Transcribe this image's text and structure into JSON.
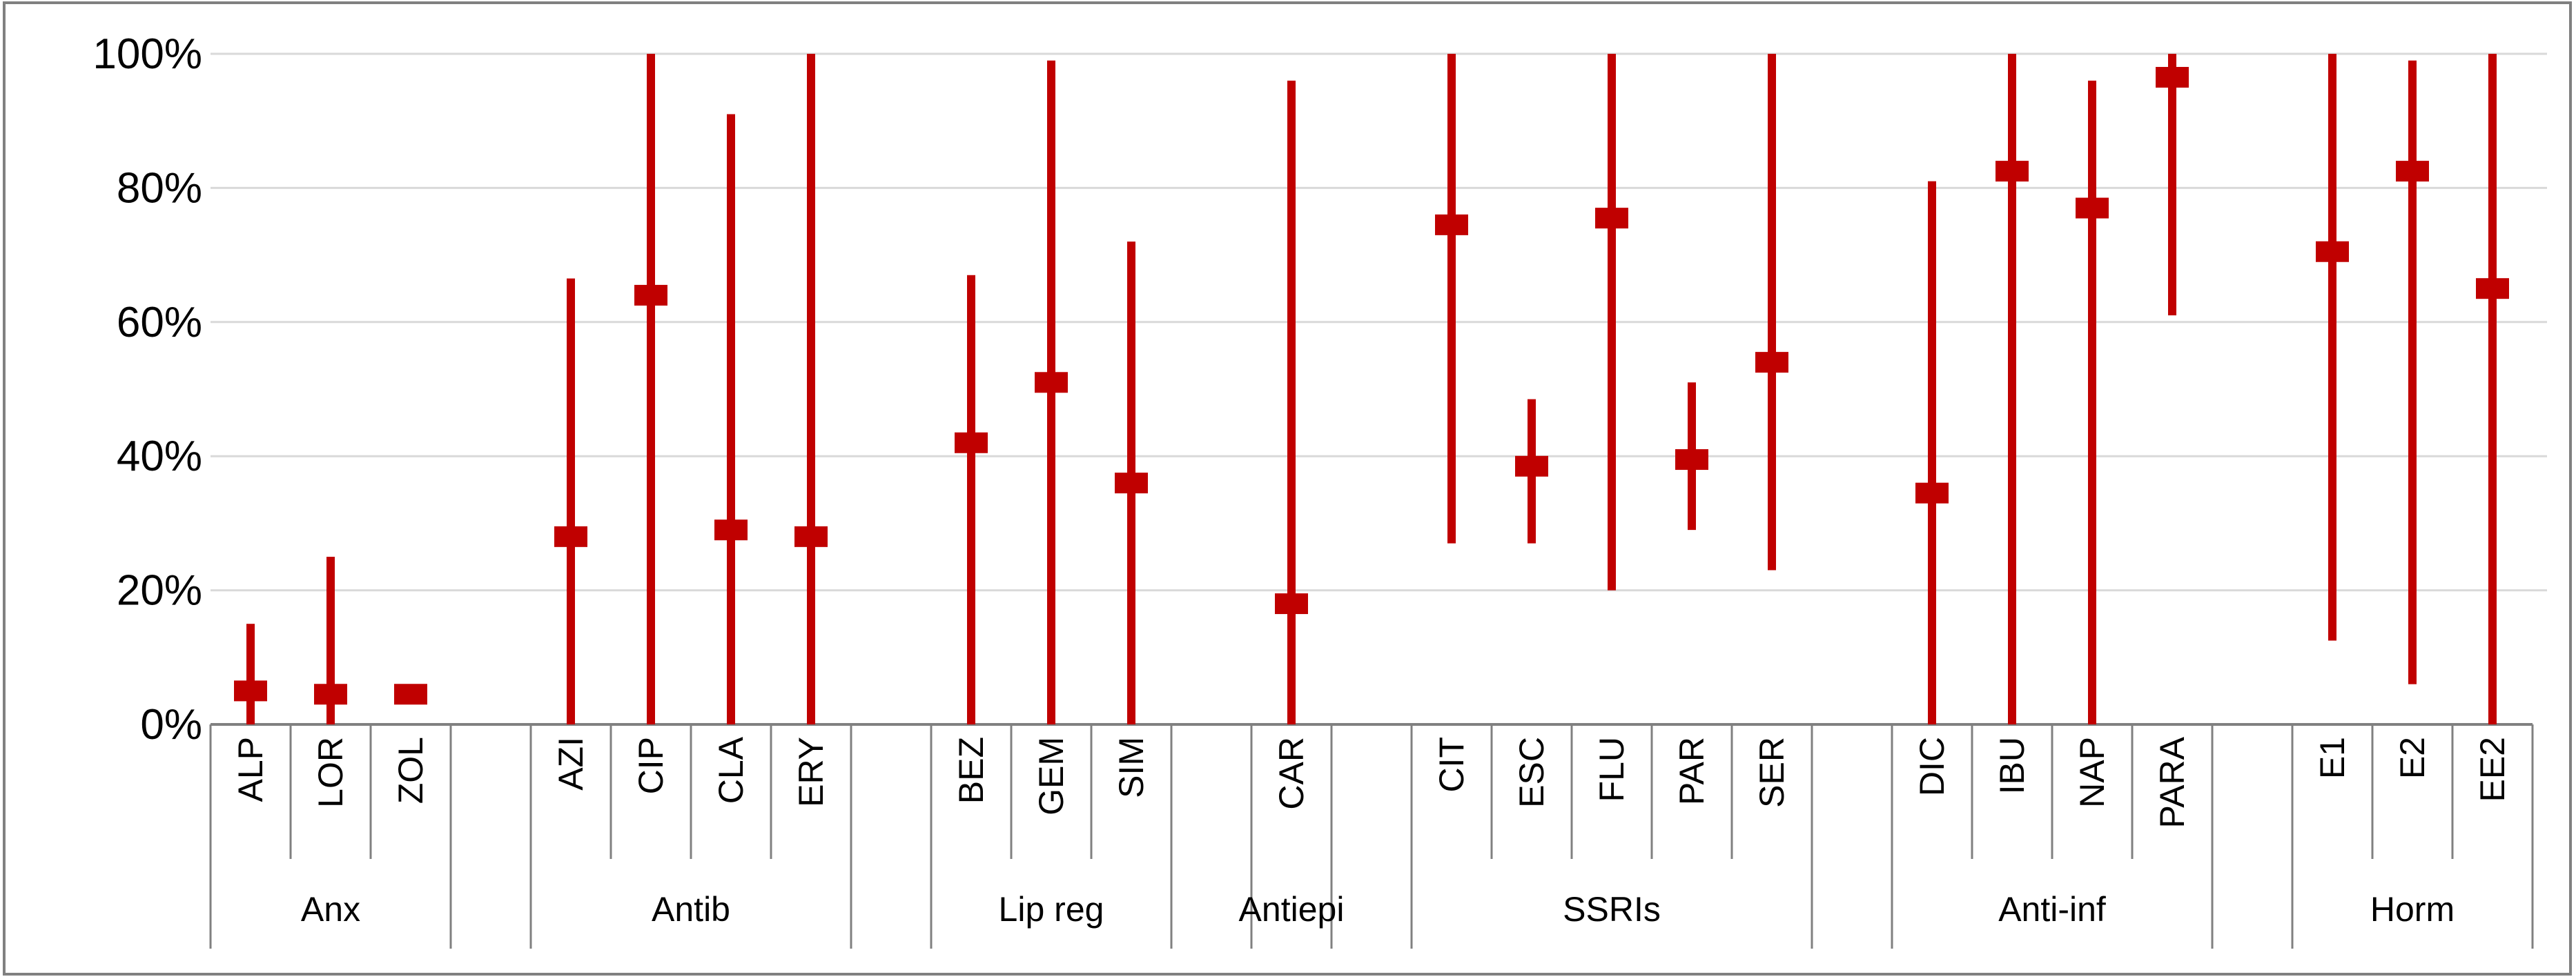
{
  "chart_data": {
    "type": "errorbar",
    "y_axis": {
      "min": 0,
      "max": 100,
      "ticks": [
        0,
        20,
        40,
        60,
        80,
        100
      ],
      "tick_labels": [
        "0%",
        "20%",
        "40%",
        "60%",
        "80%",
        "100%"
      ],
      "gridlines": true
    },
    "legend": "none",
    "colors": {
      "series": "#C00000",
      "grid": "#D9D9D9",
      "axis": "#808080",
      "frame": "#808080"
    },
    "slots": [
      "ALP",
      "LOR",
      "ZOL",
      "",
      "AZI",
      "CIP",
      "CLA",
      "ERY",
      "",
      "BEZ",
      "GEM",
      "SIM",
      "",
      "CAR",
      "",
      "CIT",
      "ESC",
      "FLU",
      "PAR",
      "SER",
      "",
      "DIC",
      "IBU",
      "NAP",
      "PARA",
      "",
      "E1",
      "E2",
      "EE2"
    ],
    "groups": [
      {
        "name": "Anx",
        "start": 0,
        "end": 2
      },
      {
        "name": "Antib",
        "start": 4,
        "end": 7
      },
      {
        "name": "Lip reg",
        "start": 9,
        "end": 11
      },
      {
        "name": "Antiepi",
        "start": 13,
        "end": 13
      },
      {
        "name": "SSRIs",
        "start": 15,
        "end": 19
      },
      {
        "name": "Anti-inf",
        "start": 21,
        "end": 24
      },
      {
        "name": "Horm",
        "start": 26,
        "end": 28
      }
    ],
    "points": [
      {
        "label": "ALP",
        "value": 5,
        "low": 0,
        "high": 15
      },
      {
        "label": "LOR",
        "value": 4.5,
        "low": 0,
        "high": 25
      },
      {
        "label": "ZOL",
        "value": 4.5,
        "low": 4.5,
        "high": 4.5
      },
      {
        "label": "AZI",
        "value": 28,
        "low": 0,
        "high": 66.5
      },
      {
        "label": "CIP",
        "value": 64,
        "low": 0,
        "high": 100
      },
      {
        "label": "CLA",
        "value": 29,
        "low": 0,
        "high": 91
      },
      {
        "label": "ERY",
        "value": 28,
        "low": 0,
        "high": 100
      },
      {
        "label": "BEZ",
        "value": 42,
        "low": 0,
        "high": 67
      },
      {
        "label": "GEM",
        "value": 51,
        "low": 0,
        "high": 99
      },
      {
        "label": "SIM",
        "value": 36,
        "low": 0,
        "high": 72
      },
      {
        "label": "CAR",
        "value": 18,
        "low": 0,
        "high": 96
      },
      {
        "label": "CIT",
        "value": 74.5,
        "low": 27,
        "high": 100
      },
      {
        "label": "ESC",
        "value": 38.5,
        "low": 27,
        "high": 48.5
      },
      {
        "label": "FLU",
        "value": 75.5,
        "low": 20,
        "high": 100
      },
      {
        "label": "PAR",
        "value": 39.5,
        "low": 29,
        "high": 51
      },
      {
        "label": "SER",
        "value": 54,
        "low": 23,
        "high": 100
      },
      {
        "label": "DIC",
        "value": 34.5,
        "low": 0,
        "high": 81
      },
      {
        "label": "IBU",
        "value": 82.5,
        "low": 0,
        "high": 100
      },
      {
        "label": "NAP",
        "value": 77,
        "low": 0,
        "high": 96
      },
      {
        "label": "PARA",
        "value": 96.5,
        "low": 61,
        "high": 100
      },
      {
        "label": "E1",
        "value": 70.5,
        "low": 12.5,
        "high": 100
      },
      {
        "label": "E2",
        "value": 82.5,
        "low": 6,
        "high": 99
      },
      {
        "label": "EE2",
        "value": 65,
        "low": 0,
        "high": 100
      }
    ]
  }
}
